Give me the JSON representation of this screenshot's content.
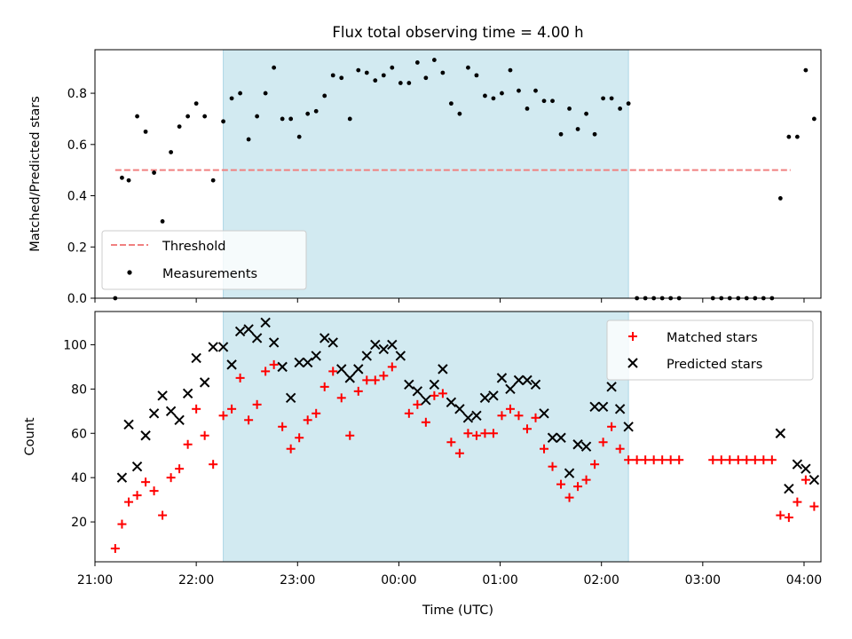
{
  "figure": {
    "title": "Flux total observing time = 4.00 h",
    "xlabel": "Time (UTC)"
  },
  "colors": {
    "highlight": "#add8e6",
    "threshold": "#f08080",
    "measurements": "#000000",
    "matched": "#ff0000",
    "predicted": "#000000"
  },
  "chart_data": [
    {
      "type": "scatter",
      "ylabel": "Matched/Predicted stars",
      "xlim": [
        "21:00",
        "04:10"
      ],
      "ylim": [
        0,
        0.97
      ],
      "xticks": [
        "21:00",
        "22:00",
        "23:00",
        "00:00",
        "01:00",
        "02:00",
        "03:00",
        "04:00"
      ],
      "yticks": [
        0.0,
        0.2,
        0.4,
        0.6,
        0.8
      ],
      "shaded_span": [
        "22:16",
        "02:16"
      ],
      "legend": {
        "position": "lower-left",
        "entries": [
          "Threshold",
          "Measurements"
        ]
      },
      "threshold": {
        "name": "Threshold",
        "style": "dashed",
        "x": [
          "21:12",
          "03:52"
        ],
        "y": 0.5
      },
      "series": [
        {
          "name": "Measurements",
          "marker": "dot",
          "points": [
            [
              "21:12",
              0.0
            ],
            [
              "21:16",
              0.47
            ],
            [
              "21:20",
              0.46
            ],
            [
              "21:25",
              0.71
            ],
            [
              "21:30",
              0.65
            ],
            [
              "21:35",
              0.49
            ],
            [
              "21:40",
              0.3
            ],
            [
              "21:45",
              0.57
            ],
            [
              "21:50",
              0.67
            ],
            [
              "21:55",
              0.71
            ],
            [
              "22:00",
              0.76
            ],
            [
              "22:05",
              0.71
            ],
            [
              "22:10",
              0.46
            ],
            [
              "22:16",
              0.69
            ],
            [
              "22:21",
              0.78
            ],
            [
              "22:26",
              0.8
            ],
            [
              "22:31",
              0.62
            ],
            [
              "22:36",
              0.71
            ],
            [
              "22:41",
              0.8
            ],
            [
              "22:46",
              0.9
            ],
            [
              "22:51",
              0.7
            ],
            [
              "22:56",
              0.7
            ],
            [
              "23:01",
              0.63
            ],
            [
              "23:06",
              0.72
            ],
            [
              "23:11",
              0.73
            ],
            [
              "23:16",
              0.79
            ],
            [
              "23:21",
              0.87
            ],
            [
              "23:26",
              0.86
            ],
            [
              "23:31",
              0.7
            ],
            [
              "23:36",
              0.89
            ],
            [
              "23:41",
              0.88
            ],
            [
              "23:46",
              0.85
            ],
            [
              "23:51",
              0.87
            ],
            [
              "23:56",
              0.9
            ],
            [
              "00:01",
              0.84
            ],
            [
              "00:06",
              0.84
            ],
            [
              "00:11",
              0.92
            ],
            [
              "00:16",
              0.86
            ],
            [
              "00:21",
              0.93
            ],
            [
              "00:26",
              0.88
            ],
            [
              "00:31",
              0.76
            ],
            [
              "00:36",
              0.72
            ],
            [
              "00:41",
              0.9
            ],
            [
              "00:46",
              0.87
            ],
            [
              "00:51",
              0.79
            ],
            [
              "00:56",
              0.78
            ],
            [
              "01:01",
              0.8
            ],
            [
              "01:06",
              0.89
            ],
            [
              "01:11",
              0.81
            ],
            [
              "01:16",
              0.74
            ],
            [
              "01:21",
              0.81
            ],
            [
              "01:26",
              0.77
            ],
            [
              "01:31",
              0.77
            ],
            [
              "01:36",
              0.64
            ],
            [
              "01:41",
              0.74
            ],
            [
              "01:46",
              0.66
            ],
            [
              "01:51",
              0.72
            ],
            [
              "01:56",
              0.64
            ],
            [
              "02:01",
              0.78
            ],
            [
              "02:06",
              0.78
            ],
            [
              "02:11",
              0.74
            ],
            [
              "02:16",
              0.76
            ],
            [
              "02:21",
              0.0
            ],
            [
              "02:26",
              0.0
            ],
            [
              "02:31",
              0.0
            ],
            [
              "02:36",
              0.0
            ],
            [
              "02:41",
              0.0
            ],
            [
              "02:46",
              0.0
            ],
            [
              "03:06",
              0.0
            ],
            [
              "03:11",
              0.0
            ],
            [
              "03:16",
              0.0
            ],
            [
              "03:21",
              0.0
            ],
            [
              "03:26",
              0.0
            ],
            [
              "03:31",
              0.0
            ],
            [
              "03:36",
              0.0
            ],
            [
              "03:41",
              0.0
            ],
            [
              "03:46",
              0.39
            ],
            [
              "03:51",
              0.63
            ],
            [
              "03:56",
              0.63
            ],
            [
              "04:01",
              0.89
            ],
            [
              "04:06",
              0.7
            ]
          ]
        }
      ]
    },
    {
      "type": "scatter",
      "ylabel": "Count",
      "xlim": [
        "21:00",
        "04:10"
      ],
      "ylim": [
        2,
        115
      ],
      "xticks": [
        "21:00",
        "22:00",
        "23:00",
        "00:00",
        "01:00",
        "02:00",
        "03:00",
        "04:00"
      ],
      "yticks": [
        20,
        40,
        60,
        80,
        100
      ],
      "shaded_span": [
        "22:16",
        "02:16"
      ],
      "legend": {
        "position": "upper-right",
        "entries": [
          "Matched stars",
          "Predicted stars"
        ]
      },
      "series": [
        {
          "name": "Matched stars",
          "marker": "plus",
          "points": [
            [
              "21:12",
              8
            ],
            [
              "21:16",
              19
            ],
            [
              "21:20",
              29
            ],
            [
              "21:25",
              32
            ],
            [
              "21:30",
              38
            ],
            [
              "21:35",
              34
            ],
            [
              "21:40",
              23
            ],
            [
              "21:45",
              40
            ],
            [
              "21:50",
              44
            ],
            [
              "21:55",
              55
            ],
            [
              "22:00",
              71
            ],
            [
              "22:05",
              59
            ],
            [
              "22:10",
              46
            ],
            [
              "22:16",
              68
            ],
            [
              "22:21",
              71
            ],
            [
              "22:26",
              85
            ],
            [
              "22:31",
              66
            ],
            [
              "22:36",
              73
            ],
            [
              "22:41",
              88
            ],
            [
              "22:46",
              91
            ],
            [
              "22:51",
              63
            ],
            [
              "22:56",
              53
            ],
            [
              "23:01",
              58
            ],
            [
              "23:06",
              66
            ],
            [
              "23:11",
              69
            ],
            [
              "23:16",
              81
            ],
            [
              "23:21",
              88
            ],
            [
              "23:26",
              76
            ],
            [
              "23:31",
              59
            ],
            [
              "23:36",
              79
            ],
            [
              "23:41",
              84
            ],
            [
              "23:46",
              84
            ],
            [
              "23:51",
              86
            ],
            [
              "23:56",
              90
            ],
            [
              "00:06",
              69
            ],
            [
              "00:11",
              73
            ],
            [
              "00:16",
              65
            ],
            [
              "00:21",
              77
            ],
            [
              "00:26",
              78
            ],
            [
              "00:31",
              56
            ],
            [
              "00:36",
              51
            ],
            [
              "00:41",
              60
            ],
            [
              "00:46",
              59
            ],
            [
              "00:51",
              60
            ],
            [
              "00:56",
              60
            ],
            [
              "01:01",
              68
            ],
            [
              "01:06",
              71
            ],
            [
              "01:11",
              68
            ],
            [
              "01:16",
              62
            ],
            [
              "01:21",
              67
            ],
            [
              "01:26",
              53
            ],
            [
              "01:31",
              45
            ],
            [
              "01:36",
              37
            ],
            [
              "01:41",
              31
            ],
            [
              "01:46",
              36
            ],
            [
              "01:51",
              39
            ],
            [
              "01:56",
              46
            ],
            [
              "02:01",
              56
            ],
            [
              "02:06",
              63
            ],
            [
              "02:11",
              53
            ],
            [
              "02:16",
              48
            ],
            [
              "02:21",
              48
            ],
            [
              "02:26",
              48
            ],
            [
              "02:31",
              48
            ],
            [
              "02:36",
              48
            ],
            [
              "02:41",
              48
            ],
            [
              "02:46",
              48
            ],
            [
              "03:06",
              48
            ],
            [
              "03:11",
              48
            ],
            [
              "03:16",
              48
            ],
            [
              "03:21",
              48
            ],
            [
              "03:26",
              48
            ],
            [
              "03:31",
              48
            ],
            [
              "03:36",
              48
            ],
            [
              "03:41",
              48
            ],
            [
              "03:46",
              23
            ],
            [
              "03:51",
              22
            ],
            [
              "03:56",
              29
            ],
            [
              "04:01",
              39
            ],
            [
              "04:06",
              27
            ]
          ]
        },
        {
          "name": "Predicted stars",
          "marker": "x",
          "points": [
            [
              "21:16",
              40
            ],
            [
              "21:20",
              64
            ],
            [
              "21:25",
              45
            ],
            [
              "21:30",
              59
            ],
            [
              "21:35",
              69
            ],
            [
              "21:40",
              77
            ],
            [
              "21:45",
              70
            ],
            [
              "21:50",
              66
            ],
            [
              "21:55",
              78
            ],
            [
              "22:00",
              94
            ],
            [
              "22:05",
              83
            ],
            [
              "22:10",
              99
            ],
            [
              "22:16",
              99
            ],
            [
              "22:21",
              91
            ],
            [
              "22:26",
              106
            ],
            [
              "22:31",
              107
            ],
            [
              "22:36",
              103
            ],
            [
              "22:41",
              110
            ],
            [
              "22:46",
              101
            ],
            [
              "22:51",
              90
            ],
            [
              "22:56",
              76
            ],
            [
              "23:01",
              92
            ],
            [
              "23:06",
              92
            ],
            [
              "23:11",
              95
            ],
            [
              "23:16",
              103
            ],
            [
              "23:21",
              101
            ],
            [
              "23:26",
              89
            ],
            [
              "23:31",
              85
            ],
            [
              "23:36",
              89
            ],
            [
              "23:41",
              95
            ],
            [
              "23:46",
              100
            ],
            [
              "23:51",
              98
            ],
            [
              "23:56",
              100
            ],
            [
              "00:01",
              95
            ],
            [
              "00:06",
              82
            ],
            [
              "00:11",
              79
            ],
            [
              "00:16",
              75
            ],
            [
              "00:21",
              82
            ],
            [
              "00:26",
              89
            ],
            [
              "00:31",
              74
            ],
            [
              "00:36",
              71
            ],
            [
              "00:41",
              67
            ],
            [
              "00:46",
              68
            ],
            [
              "00:51",
              76
            ],
            [
              "00:56",
              77
            ],
            [
              "01:01",
              85
            ],
            [
              "01:06",
              80
            ],
            [
              "01:11",
              84
            ],
            [
              "01:16",
              84
            ],
            [
              "01:21",
              82
            ],
            [
              "01:26",
              69
            ],
            [
              "01:31",
              58
            ],
            [
              "01:36",
              58
            ],
            [
              "01:41",
              42
            ],
            [
              "01:46",
              55
            ],
            [
              "01:51",
              54
            ],
            [
              "01:56",
              72
            ],
            [
              "02:01",
              72
            ],
            [
              "02:06",
              81
            ],
            [
              "02:11",
              71
            ],
            [
              "02:16",
              63
            ],
            [
              "03:46",
              60
            ],
            [
              "03:51",
              35
            ],
            [
              "03:56",
              46
            ],
            [
              "04:01",
              44
            ],
            [
              "04:06",
              39
            ]
          ]
        }
      ]
    }
  ]
}
